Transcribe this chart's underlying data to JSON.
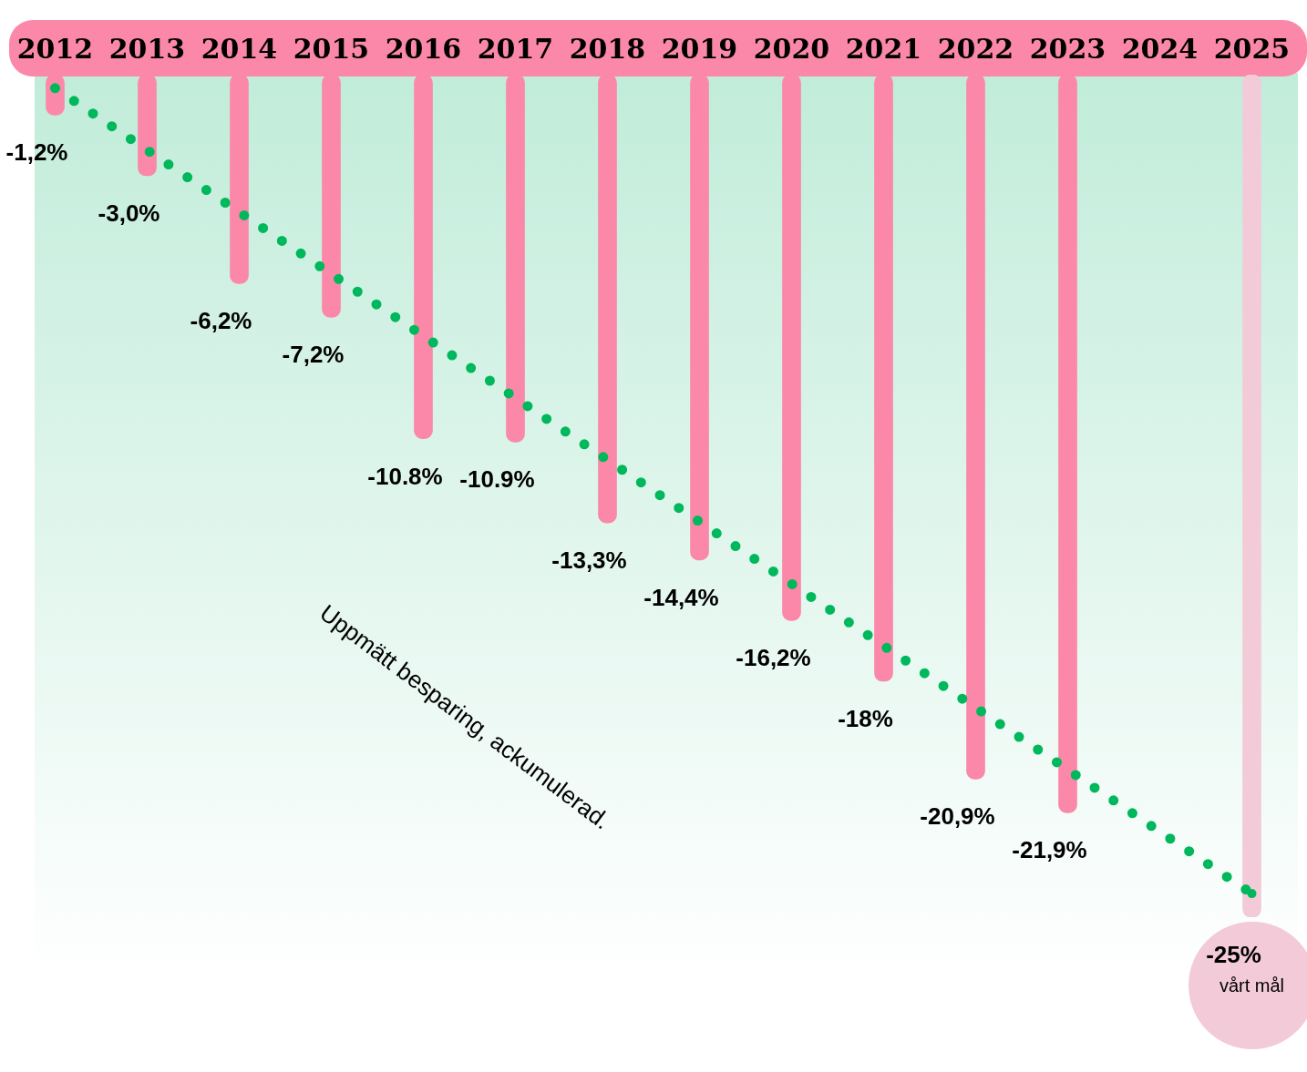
{
  "chart_data": {
    "type": "bar",
    "categories": [
      "2012",
      "2013",
      "2014",
      "2015",
      "2016",
      "2017",
      "2018",
      "2019",
      "2020",
      "2021",
      "2022",
      "2023",
      "2024",
      "2025"
    ],
    "series": [
      {
        "values": [
          -1.2,
          -3.0,
          -6.2,
          -7.2,
          -10.8,
          -10.9,
          -13.3,
          -14.4,
          -16.2,
          -18,
          -20.9,
          -21.9,
          null,
          -25
        ],
        "colors": [
          "#fb88a8",
          "#fb88a8",
          "#fb88a8",
          "#fb88a8",
          "#fb88a8",
          "#fb88a8",
          "#fb88a8",
          "#fb88a8",
          "#fb88a8",
          "#fb88a8",
          "#fb88a8",
          "#fb88a8",
          "#fb88a8",
          "#f3cbd8"
        ],
        "value_labels": [
          "-1,2%",
          "-3,0%",
          "-6,2%",
          "-7,2%",
          "-10.8%",
          "-10.9%",
          "-13,3%",
          "-14,4%",
          "-16,2%",
          "-18%",
          "-20,9%",
          "-21,9%",
          null,
          "-25%"
        ]
      },
      {
        "type": "line",
        "values": [
          -0.4,
          null,
          null,
          null,
          null,
          null,
          null,
          null,
          null,
          null,
          null,
          null,
          null,
          -24.3
        ],
        "color": "#00b85c",
        "line_style": "dotted",
        "marker": "circle"
      }
    ],
    "annotations": [
      "Uppmätt besparing, ackumulerad.",
      "vårt mål"
    ],
    "grid": false,
    "legend": false
  }
}
